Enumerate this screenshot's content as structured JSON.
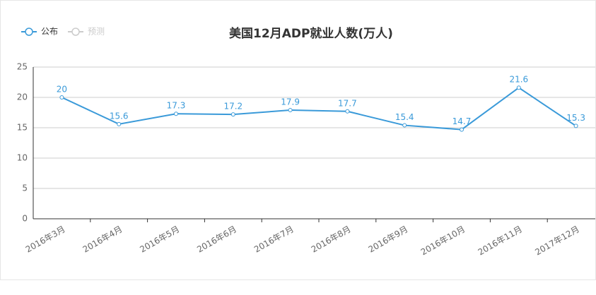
{
  "chart_data": {
    "type": "line",
    "title": "美国12月ADP就业人数(万人)",
    "categories": [
      "2016年3月",
      "2016年4月",
      "2016年5月",
      "2016年6月",
      "2016年7月",
      "2016年8月",
      "2016年9月",
      "2016年10月",
      "2016年11月",
      "2017年12月"
    ],
    "series": [
      {
        "name": "公布",
        "color": "#3a9ad9",
        "values": [
          20,
          15.6,
          17.3,
          17.2,
          17.9,
          17.7,
          15.4,
          14.7,
          21.6,
          15.3
        ]
      },
      {
        "name": "预测",
        "color": "#cccccc",
        "values": [
          null,
          null,
          null,
          null,
          null,
          null,
          null,
          null,
          null,
          null
        ]
      }
    ],
    "ylim": [
      0,
      25
    ],
    "yticks": [
      0,
      5,
      10,
      15,
      20,
      25
    ],
    "grid": true,
    "legend": "top-left"
  }
}
